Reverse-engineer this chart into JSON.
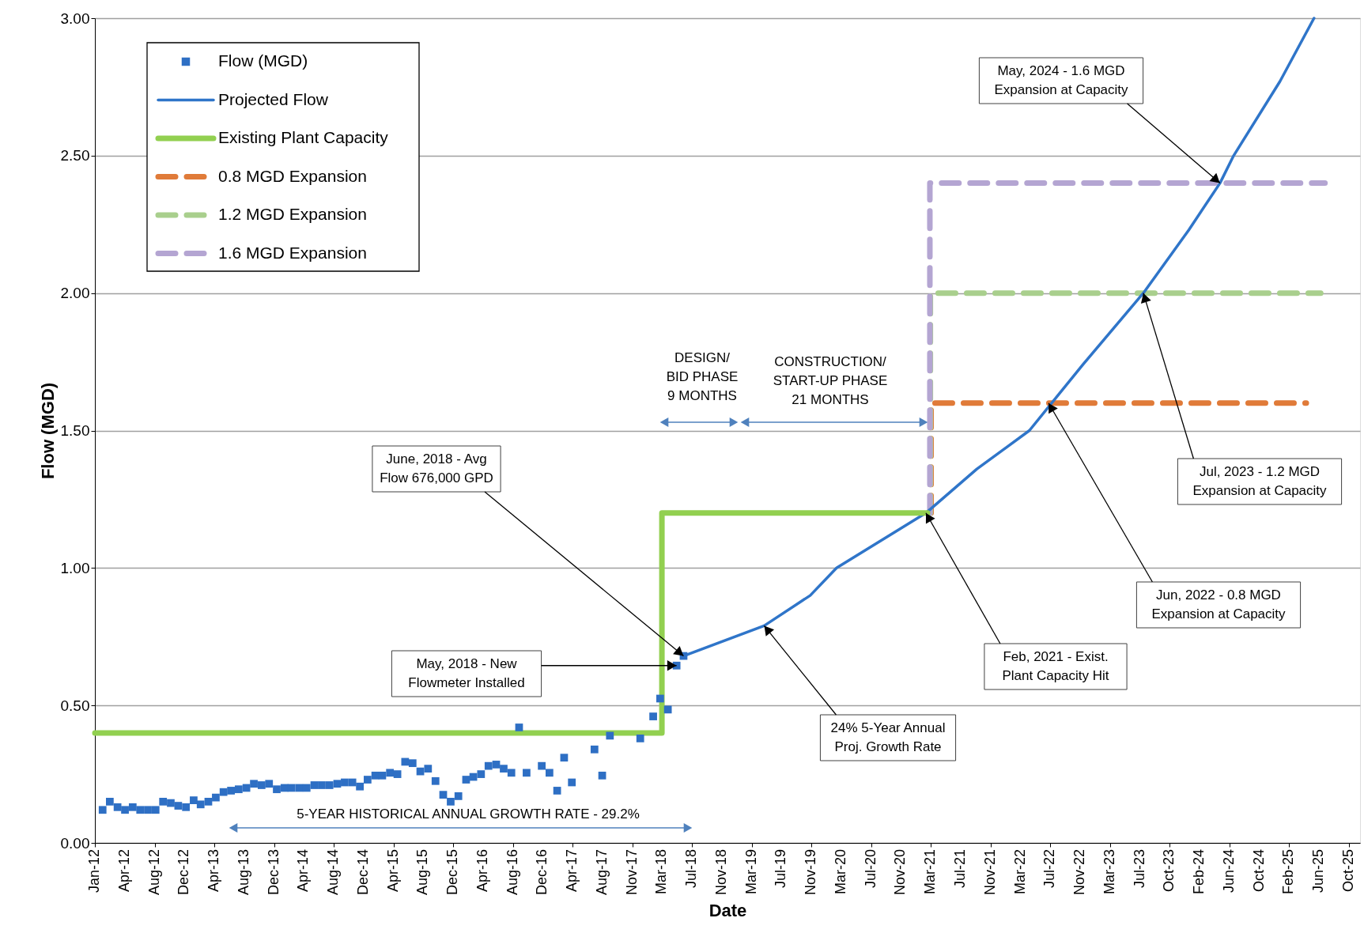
{
  "chart_data": {
    "type": "line",
    "xlabel": "Date",
    "ylabel": "Flow (MGD)",
    "grid": "y",
    "legend": "top left",
    "xlim": [
      "2012-01-01",
      "2025-12-03"
    ],
    "xticks": [
      {
        "value": "2012-01-01",
        "label": "Jan-12"
      },
      {
        "value": "2012-04-30",
        "label": "Apr-12"
      },
      {
        "value": "2012-08-28",
        "label": "Aug-12"
      },
      {
        "value": "2012-12-26",
        "label": "Dec-12"
      },
      {
        "value": "2013-04-25",
        "label": "Apr-13"
      },
      {
        "value": "2013-08-23",
        "label": "Aug-13"
      },
      {
        "value": "2013-12-21",
        "label": "Dec-13"
      },
      {
        "value": "2014-04-20",
        "label": "Apr-14"
      },
      {
        "value": "2014-08-18",
        "label": "Aug-14"
      },
      {
        "value": "2014-12-16",
        "label": "Dec-14"
      },
      {
        "value": "2015-04-15",
        "label": "Apr-15"
      },
      {
        "value": "2015-08-13",
        "label": "Aug-15"
      },
      {
        "value": "2015-12-11",
        "label": "Dec-15"
      },
      {
        "value": "2016-04-09",
        "label": "Apr-16"
      },
      {
        "value": "2016-08-07",
        "label": "Aug-16"
      },
      {
        "value": "2016-12-05",
        "label": "Dec-16"
      },
      {
        "value": "2017-04-04",
        "label": "Apr-17"
      },
      {
        "value": "2017-08-02",
        "label": "Aug-17"
      },
      {
        "value": "2017-11-30",
        "label": "Nov-17"
      },
      {
        "value": "2018-03-30",
        "label": "Mar-18"
      },
      {
        "value": "2018-07-28",
        "label": "Jul-18"
      },
      {
        "value": "2018-11-25",
        "label": "Nov-18"
      },
      {
        "value": "2019-03-25",
        "label": "Mar-19"
      },
      {
        "value": "2019-07-23",
        "label": "Jul-19"
      },
      {
        "value": "2019-11-20",
        "label": "Nov-19"
      },
      {
        "value": "2020-03-19",
        "label": "Mar-20"
      },
      {
        "value": "2020-07-17",
        "label": "Jul-20"
      },
      {
        "value": "2020-11-14",
        "label": "Nov-20"
      },
      {
        "value": "2021-03-14",
        "label": "Mar-21"
      },
      {
        "value": "2021-07-12",
        "label": "Jul-21"
      },
      {
        "value": "2021-11-09",
        "label": "Nov-21"
      },
      {
        "value": "2022-03-09",
        "label": "Mar-22"
      },
      {
        "value": "2022-07-07",
        "label": "Jul-22"
      },
      {
        "value": "2022-11-04",
        "label": "Nov-22"
      },
      {
        "value": "2023-03-04",
        "label": "Mar-23"
      },
      {
        "value": "2023-07-02",
        "label": "Jul-23"
      },
      {
        "value": "2023-10-30",
        "label": "Oct-23"
      },
      {
        "value": "2024-02-27",
        "label": "Feb-24"
      },
      {
        "value": "2024-06-26",
        "label": "Jun-24"
      },
      {
        "value": "2024-10-24",
        "label": "Oct-24"
      },
      {
        "value": "2025-02-21",
        "label": "Feb-25"
      },
      {
        "value": "2025-06-21",
        "label": "Jun-25"
      },
      {
        "value": "2025-10-19",
        "label": "Oct-25"
      }
    ],
    "ylim": [
      0,
      3
    ],
    "yticks": [
      {
        "value": 0,
        "label": "0.00"
      },
      {
        "value": 0.5,
        "label": "0.50"
      },
      {
        "value": 1,
        "label": "1.00"
      },
      {
        "value": 1.5,
        "label": "1.50"
      },
      {
        "value": 2,
        "label": "2.00"
      },
      {
        "value": 2.5,
        "label": "2.50"
      },
      {
        "value": 3,
        "label": "3.00"
      }
    ],
    "series": [
      {
        "name": "Flow (MGD)",
        "type": "scatter",
        "marker": "square",
        "color": "#2e6fc4",
        "x": [
          "2012-02",
          "2012-03",
          "2012-04",
          "2012-05",
          "2012-06",
          "2012-07",
          "2012-08",
          "2012-09",
          "2012-10",
          "2012-11",
          "2012-12",
          "2013-01",
          "2013-02",
          "2013-03",
          "2013-04",
          "2013-05",
          "2013-06",
          "2013-07",
          "2013-08",
          "2013-09",
          "2013-10",
          "2013-11",
          "2013-12",
          "2014-01",
          "2014-02",
          "2014-03",
          "2014-04",
          "2014-05",
          "2014-06",
          "2014-07",
          "2014-08",
          "2014-09",
          "2014-10",
          "2014-11",
          "2014-12",
          "2015-01",
          "2015-02",
          "2015-03",
          "2015-04",
          "2015-05",
          "2015-06",
          "2015-07",
          "2015-08",
          "2015-09",
          "2015-10",
          "2015-11",
          "2015-12",
          "2016-01",
          "2016-02",
          "2016-03",
          "2016-04",
          "2016-05",
          "2016-06",
          "2016-07",
          "2016-08",
          "2016-09",
          "2016-10",
          "2016-12",
          "2017-01",
          "2017-02",
          "2017-03",
          "2017-04",
          "2017-07",
          "2017-08",
          "2017-09",
          "2018-01",
          "2018-02-22",
          "2018-03-22",
          "2018-04-22",
          "2018-05-27",
          "2018-06-24"
        ],
        "values": [
          0.12,
          0.15,
          0.13,
          0.12,
          0.13,
          0.12,
          0.12,
          0.12,
          0.15,
          0.145,
          0.135,
          0.13,
          0.155,
          0.14,
          0.15,
          0.165,
          0.185,
          0.19,
          0.195,
          0.2,
          0.215,
          0.21,
          0.215,
          0.195,
          0.2,
          0.2,
          0.2,
          0.2,
          0.21,
          0.21,
          0.21,
          0.215,
          0.22,
          0.22,
          0.205,
          0.23,
          0.245,
          0.245,
          0.255,
          0.25,
          0.295,
          0.29,
          0.26,
          0.27,
          0.225,
          0.175,
          0.15,
          0.17,
          0.23,
          0.24,
          0.25,
          0.28,
          0.285,
          0.27,
          0.255,
          0.42,
          0.255,
          0.28,
          0.255,
          0.19,
          0.31,
          0.22,
          0.34,
          0.245,
          0.39,
          0.38,
          0.46,
          0.525,
          0.485,
          0.645,
          0.68
        ]
      },
      {
        "name": "Projected Flow",
        "color": "#2f75c9",
        "line_style": "solid",
        "x": [
          "2018-06-24",
          "2019-05-14",
          "2019-11-15",
          "2020-02-29",
          "2021-02-22",
          "2021-09-15",
          "2022-04-14",
          "2022-11-15",
          "2023-07-16",
          "2024-01-15",
          "2024-05-19",
          "2024-07-13",
          "2025-01-15",
          "2025-06-01"
        ],
        "values": [
          0.68,
          0.79,
          0.9,
          1.0,
          1.2,
          1.36,
          1.5,
          1.74,
          2.0,
          2.23,
          2.4,
          2.5,
          2.77,
          3.0
        ]
      },
      {
        "name": "Existing Plant Capacity",
        "color": "#92d050",
        "line_style": "solid",
        "x": [
          "2012-01-01",
          "2018-03-29",
          "2018-03-29",
          "2021-03-01"
        ],
        "values": [
          0.4,
          0.4,
          1.2,
          1.2
        ]
      },
      {
        "name": "0.8 MGD Expansion",
        "color": "#e07b39",
        "line_style": "dashed",
        "x": [
          "2021-03-15",
          "2021-03-15",
          "2025-05-01"
        ],
        "values": [
          1.2,
          1.6,
          1.6
        ]
      },
      {
        "name": "1.2 MGD Expansion",
        "color": "#a9cf8d",
        "line_style": "dashed",
        "x": [
          "2021-03-12",
          "2021-03-12",
          "2025-06-28"
        ],
        "values": [
          1.2,
          2.0,
          2.0
        ]
      },
      {
        "name": "1.6 MGD Expansion",
        "color": "#b4a5d2",
        "line_style": "dashed",
        "x": [
          "2021-03-10",
          "2021-03-10",
          "2025-07-15"
        ],
        "values": [
          1.2,
          2.4,
          2.4
        ]
      }
    ],
    "annotations": [
      {
        "text": "June, 2018 - Avg Flow 676,000 GPD",
        "x": "2018-06-24",
        "y": 0.68
      },
      {
        "text": "May, 2018 - New Flowmeter Installed",
        "x": "2018-05-27",
        "y": 0.645
      },
      {
        "text": "24% 5-Year Annual Proj. Growth Rate",
        "x": "2019-05-14",
        "y": 0.79
      },
      {
        "text": "Feb, 2021 - Exist. Plant Capacity Hit",
        "x": "2021-02-22",
        "y": 1.2
      },
      {
        "text": "Jun, 2022 - 0.8 MGD Expansion at Capacity",
        "x": "2022-06-30",
        "y": 1.6
      },
      {
        "text": "Jul, 2023 - 1.2 MGD Expansion at Capacity",
        "x": "2023-07-16",
        "y": 2.0
      },
      {
        "text": "May, 2024 - 1.6 MGD Expansion at Capacity",
        "x": "2024-05-19",
        "y": 2.4
      },
      "5-YEAR HISTORICAL ANNUAL GROWTH RATE - 29.2%",
      "DESIGN/ BID PHASE 9 MONTHS",
      "CONSTRUCTION/ START-UP PHASE 21 MONTHS"
    ]
  }
}
